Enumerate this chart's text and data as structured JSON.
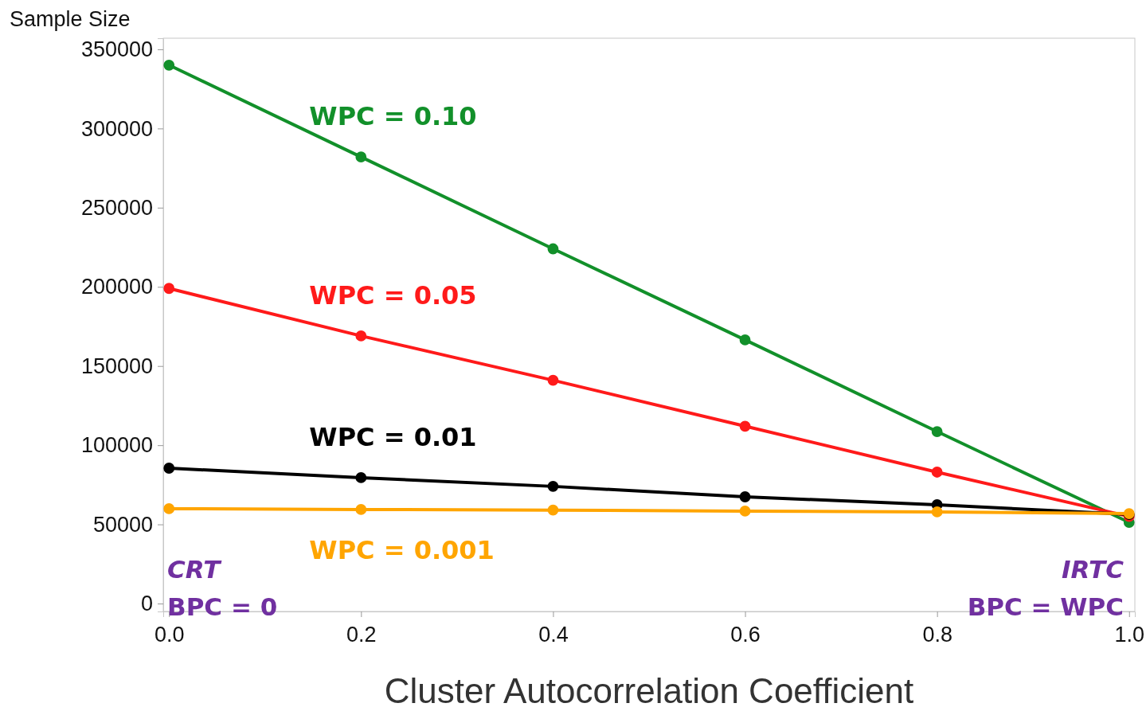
{
  "chart_data": {
    "type": "line",
    "ylabel": "Sample Size",
    "xlabel": "Cluster Autocorrelation Coefficient",
    "x": [
      0,
      0.2,
      0.4,
      0.6,
      0.8,
      1.0
    ],
    "xlim": [
      -0.006,
      1.006
    ],
    "xticks": [
      {
        "value": 0,
        "label": "0.0"
      },
      {
        "value": 0.2,
        "label": "0.2"
      },
      {
        "value": 0.4,
        "label": "0.4"
      },
      {
        "value": 0.6,
        "label": "0.6"
      },
      {
        "value": 0.8,
        "label": "0.8"
      },
      {
        "value": 1,
        "label": "1.0"
      }
    ],
    "ylim": [
      -5000,
      357000
    ],
    "yticks": [
      0,
      50000,
      100000,
      150000,
      200000,
      250000,
      300000,
      350000
    ],
    "grid": false,
    "marker": "circle",
    "line_style": "solid",
    "legend": false,
    "series": [
      {
        "name": "WPC = 0.10",
        "color": "#12902a",
        "values": [
          340000,
          282000,
          224000,
          166500,
          108600,
          51300
        ]
      },
      {
        "name": "WPC = 0.05",
        "color": "#ff1a1a",
        "values": [
          199000,
          169000,
          141000,
          112000,
          83000,
          55000
        ]
      },
      {
        "name": "WPC = 0.01",
        "color": "#000000",
        "values": [
          85500,
          79500,
          74000,
          67400,
          62400,
          56300
        ]
      },
      {
        "name": "WPC = 0.001",
        "color": "#ffa500",
        "values": [
          59900,
          59400,
          59000,
          58400,
          57900,
          56800
        ]
      }
    ],
    "annotations": [
      "CRT",
      "BPC = 0",
      "IRTC",
      "BPC = WPC"
    ]
  }
}
